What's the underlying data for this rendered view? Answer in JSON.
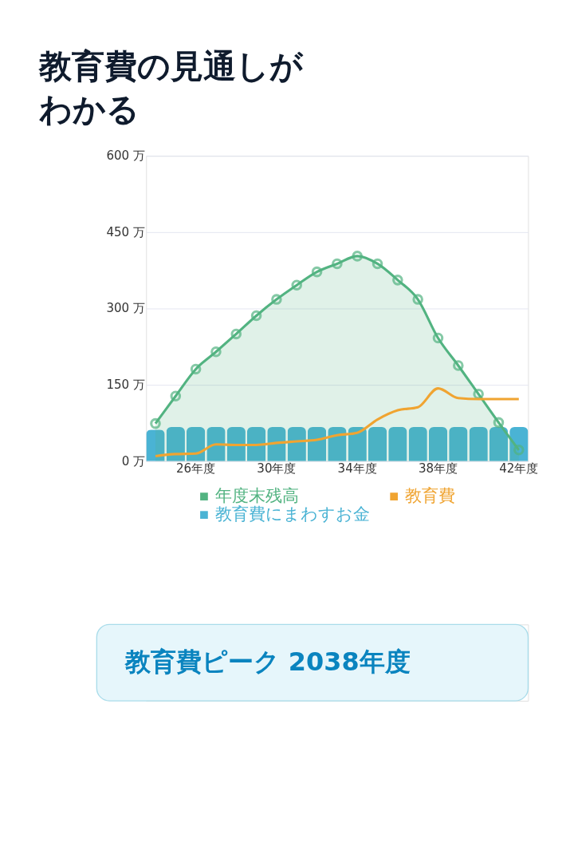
{
  "chart_data": {
    "type": "bar",
    "title": "教育費の見通しがわかる",
    "categories": [
      null,
      null,
      "26年度",
      null,
      null,
      null,
      "30年度",
      null,
      null,
      null,
      "34年度",
      null,
      null,
      null,
      "38年度",
      null,
      null,
      null,
      "42年度"
    ],
    "series": [
      {
        "name": "教育費にまわすお金",
        "color": "#4ab3d4",
        "values": [
          62,
          67,
          67,
          67,
          67,
          67,
          67,
          67,
          67,
          67,
          67,
          67,
          67,
          67,
          67,
          67,
          67,
          67,
          67
        ]
      },
      {
        "name": "年度末残高",
        "type": "area",
        "color": "#52b381",
        "marker": "circle",
        "values": [
          74,
          128,
          181,
          215,
          250,
          286,
          318,
          346,
          372,
          388,
          403,
          388,
          356,
          318,
          242,
          188,
          132,
          76,
          22
        ]
      },
      {
        "name": "教育費",
        "type": "line",
        "color": "#f0a431",
        "values": [
          10,
          14,
          15,
          33,
          32,
          32,
          36,
          39,
          42,
          51,
          56,
          82,
          100,
          106,
          143,
          124,
          122,
          122,
          122
        ]
      }
    ],
    "ylim": [
      0,
      600
    ],
    "yticks": [
      {
        "value": 0,
        "label": "0 万"
      },
      {
        "value": 150,
        "label": "150 万"
      },
      {
        "value": 300,
        "label": "300 万"
      },
      {
        "value": 450,
        "label": "450 万"
      },
      {
        "value": 600,
        "label": "600 万"
      }
    ],
    "grid": "y",
    "legend": "bottom",
    "annotations": [
      "教育費ピーク 2038年度"
    ]
  }
}
